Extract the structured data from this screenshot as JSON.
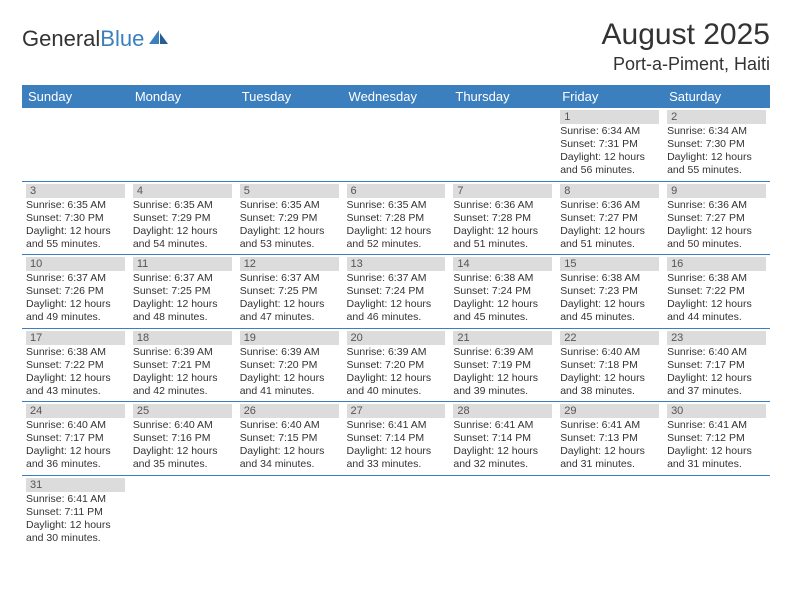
{
  "brand": {
    "part1": "General",
    "part2": "Blue"
  },
  "title": "August 2025",
  "location": "Port-a-Piment, Haiti",
  "colors": {
    "header_bg": "#3b7fbf",
    "header_text": "#ffffff",
    "daynum_bg": "#dcdcdc",
    "daynum_text": "#555555",
    "body_text": "#333333",
    "separator": "#3b7fbf",
    "background": "#ffffff"
  },
  "typography": {
    "title_fontsize": 30,
    "location_fontsize": 18,
    "dayheader_fontsize": 13,
    "cell_fontsize": 10.5
  },
  "day_headers": [
    "Sunday",
    "Monday",
    "Tuesday",
    "Wednesday",
    "Thursday",
    "Friday",
    "Saturday"
  ],
  "weeks": [
    [
      {
        "n": "",
        "rise": "",
        "set": "",
        "dayh": "",
        "daym": ""
      },
      {
        "n": "",
        "rise": "",
        "set": "",
        "dayh": "",
        "daym": ""
      },
      {
        "n": "",
        "rise": "",
        "set": "",
        "dayh": "",
        "daym": ""
      },
      {
        "n": "",
        "rise": "",
        "set": "",
        "dayh": "",
        "daym": ""
      },
      {
        "n": "",
        "rise": "",
        "set": "",
        "dayh": "",
        "daym": ""
      },
      {
        "n": "1",
        "rise": "6:34 AM",
        "set": "7:31 PM",
        "dayh": "12",
        "daym": "56"
      },
      {
        "n": "2",
        "rise": "6:34 AM",
        "set": "7:30 PM",
        "dayh": "12",
        "daym": "55"
      }
    ],
    [
      {
        "n": "3",
        "rise": "6:35 AM",
        "set": "7:30 PM",
        "dayh": "12",
        "daym": "55"
      },
      {
        "n": "4",
        "rise": "6:35 AM",
        "set": "7:29 PM",
        "dayh": "12",
        "daym": "54"
      },
      {
        "n": "5",
        "rise": "6:35 AM",
        "set": "7:29 PM",
        "dayh": "12",
        "daym": "53"
      },
      {
        "n": "6",
        "rise": "6:35 AM",
        "set": "7:28 PM",
        "dayh": "12",
        "daym": "52"
      },
      {
        "n": "7",
        "rise": "6:36 AM",
        "set": "7:28 PM",
        "dayh": "12",
        "daym": "51"
      },
      {
        "n": "8",
        "rise": "6:36 AM",
        "set": "7:27 PM",
        "dayh": "12",
        "daym": "51"
      },
      {
        "n": "9",
        "rise": "6:36 AM",
        "set": "7:27 PM",
        "dayh": "12",
        "daym": "50"
      }
    ],
    [
      {
        "n": "10",
        "rise": "6:37 AM",
        "set": "7:26 PM",
        "dayh": "12",
        "daym": "49"
      },
      {
        "n": "11",
        "rise": "6:37 AM",
        "set": "7:25 PM",
        "dayh": "12",
        "daym": "48"
      },
      {
        "n": "12",
        "rise": "6:37 AM",
        "set": "7:25 PM",
        "dayh": "12",
        "daym": "47"
      },
      {
        "n": "13",
        "rise": "6:37 AM",
        "set": "7:24 PM",
        "dayh": "12",
        "daym": "46"
      },
      {
        "n": "14",
        "rise": "6:38 AM",
        "set": "7:24 PM",
        "dayh": "12",
        "daym": "45"
      },
      {
        "n": "15",
        "rise": "6:38 AM",
        "set": "7:23 PM",
        "dayh": "12",
        "daym": "45"
      },
      {
        "n": "16",
        "rise": "6:38 AM",
        "set": "7:22 PM",
        "dayh": "12",
        "daym": "44"
      }
    ],
    [
      {
        "n": "17",
        "rise": "6:38 AM",
        "set": "7:22 PM",
        "dayh": "12",
        "daym": "43"
      },
      {
        "n": "18",
        "rise": "6:39 AM",
        "set": "7:21 PM",
        "dayh": "12",
        "daym": "42"
      },
      {
        "n": "19",
        "rise": "6:39 AM",
        "set": "7:20 PM",
        "dayh": "12",
        "daym": "41"
      },
      {
        "n": "20",
        "rise": "6:39 AM",
        "set": "7:20 PM",
        "dayh": "12",
        "daym": "40"
      },
      {
        "n": "21",
        "rise": "6:39 AM",
        "set": "7:19 PM",
        "dayh": "12",
        "daym": "39"
      },
      {
        "n": "22",
        "rise": "6:40 AM",
        "set": "7:18 PM",
        "dayh": "12",
        "daym": "38"
      },
      {
        "n": "23",
        "rise": "6:40 AM",
        "set": "7:17 PM",
        "dayh": "12",
        "daym": "37"
      }
    ],
    [
      {
        "n": "24",
        "rise": "6:40 AM",
        "set": "7:17 PM",
        "dayh": "12",
        "daym": "36"
      },
      {
        "n": "25",
        "rise": "6:40 AM",
        "set": "7:16 PM",
        "dayh": "12",
        "daym": "35"
      },
      {
        "n": "26",
        "rise": "6:40 AM",
        "set": "7:15 PM",
        "dayh": "12",
        "daym": "34"
      },
      {
        "n": "27",
        "rise": "6:41 AM",
        "set": "7:14 PM",
        "dayh": "12",
        "daym": "33"
      },
      {
        "n": "28",
        "rise": "6:41 AM",
        "set": "7:14 PM",
        "dayh": "12",
        "daym": "32"
      },
      {
        "n": "29",
        "rise": "6:41 AM",
        "set": "7:13 PM",
        "dayh": "12",
        "daym": "31"
      },
      {
        "n": "30",
        "rise": "6:41 AM",
        "set": "7:12 PM",
        "dayh": "12",
        "daym": "31"
      }
    ],
    [
      {
        "n": "31",
        "rise": "6:41 AM",
        "set": "7:11 PM",
        "dayh": "12",
        "daym": "30"
      },
      {
        "n": "",
        "rise": "",
        "set": "",
        "dayh": "",
        "daym": ""
      },
      {
        "n": "",
        "rise": "",
        "set": "",
        "dayh": "",
        "daym": ""
      },
      {
        "n": "",
        "rise": "",
        "set": "",
        "dayh": "",
        "daym": ""
      },
      {
        "n": "",
        "rise": "",
        "set": "",
        "dayh": "",
        "daym": ""
      },
      {
        "n": "",
        "rise": "",
        "set": "",
        "dayh": "",
        "daym": ""
      },
      {
        "n": "",
        "rise": "",
        "set": "",
        "dayh": "",
        "daym": ""
      }
    ]
  ],
  "labels": {
    "sunrise": "Sunrise: ",
    "sunset": "Sunset: ",
    "daylight_pre": "Daylight: ",
    "daylight_mid": " hours and ",
    "daylight_post": " minutes."
  }
}
